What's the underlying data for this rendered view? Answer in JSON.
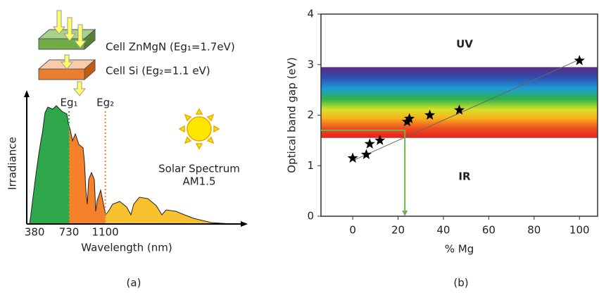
{
  "chart_data": [
    {
      "type": "area",
      "panel_label": "(a)",
      "cells": [
        "Cell ZnMgN (Eg₁=1.7eV)",
        "Cell Si (Eg₂=1.1 eV)"
      ],
      "gap_labels": [
        "Eg₁",
        "Eg₂"
      ],
      "annotation": [
        "Solar Spectrum",
        "AM1.5"
      ],
      "xlabel": "Wavelength (nm)",
      "ylabel": "Irradiance",
      "xlim": [
        300,
        2500
      ],
      "xticks": [
        380,
        730,
        1100
      ],
      "colors": [
        "#2ea84a",
        "#f5822a",
        "#f7c22e"
      ]
    },
    {
      "type": "scatter",
      "panel_label": "(b)",
      "xlabel": "% Mg",
      "ylabel": "Optical band gap (eV)",
      "annotations": [
        "UV",
        "IR"
      ],
      "x": [
        0,
        6,
        7.5,
        12,
        24,
        25,
        34,
        47,
        100
      ],
      "values": [
        1.15,
        1.22,
        1.43,
        1.5,
        1.87,
        1.93,
        2.0,
        2.1,
        3.08
      ],
      "color": "#000000",
      "xlim": [
        -14,
        108
      ],
      "ylim": [
        0,
        4
      ],
      "xticks": [
        0,
        20,
        40,
        60,
        80,
        100
      ],
      "yticks": [
        0,
        1,
        2,
        3,
        4
      ],
      "fit": {
        "x": [
          0,
          100
        ],
        "values": [
          1.1,
          3.1
        ]
      },
      "band": [
        1.55,
        2.95
      ],
      "guide": {
        "x": 23,
        "value": 1.7
      }
    }
  ]
}
